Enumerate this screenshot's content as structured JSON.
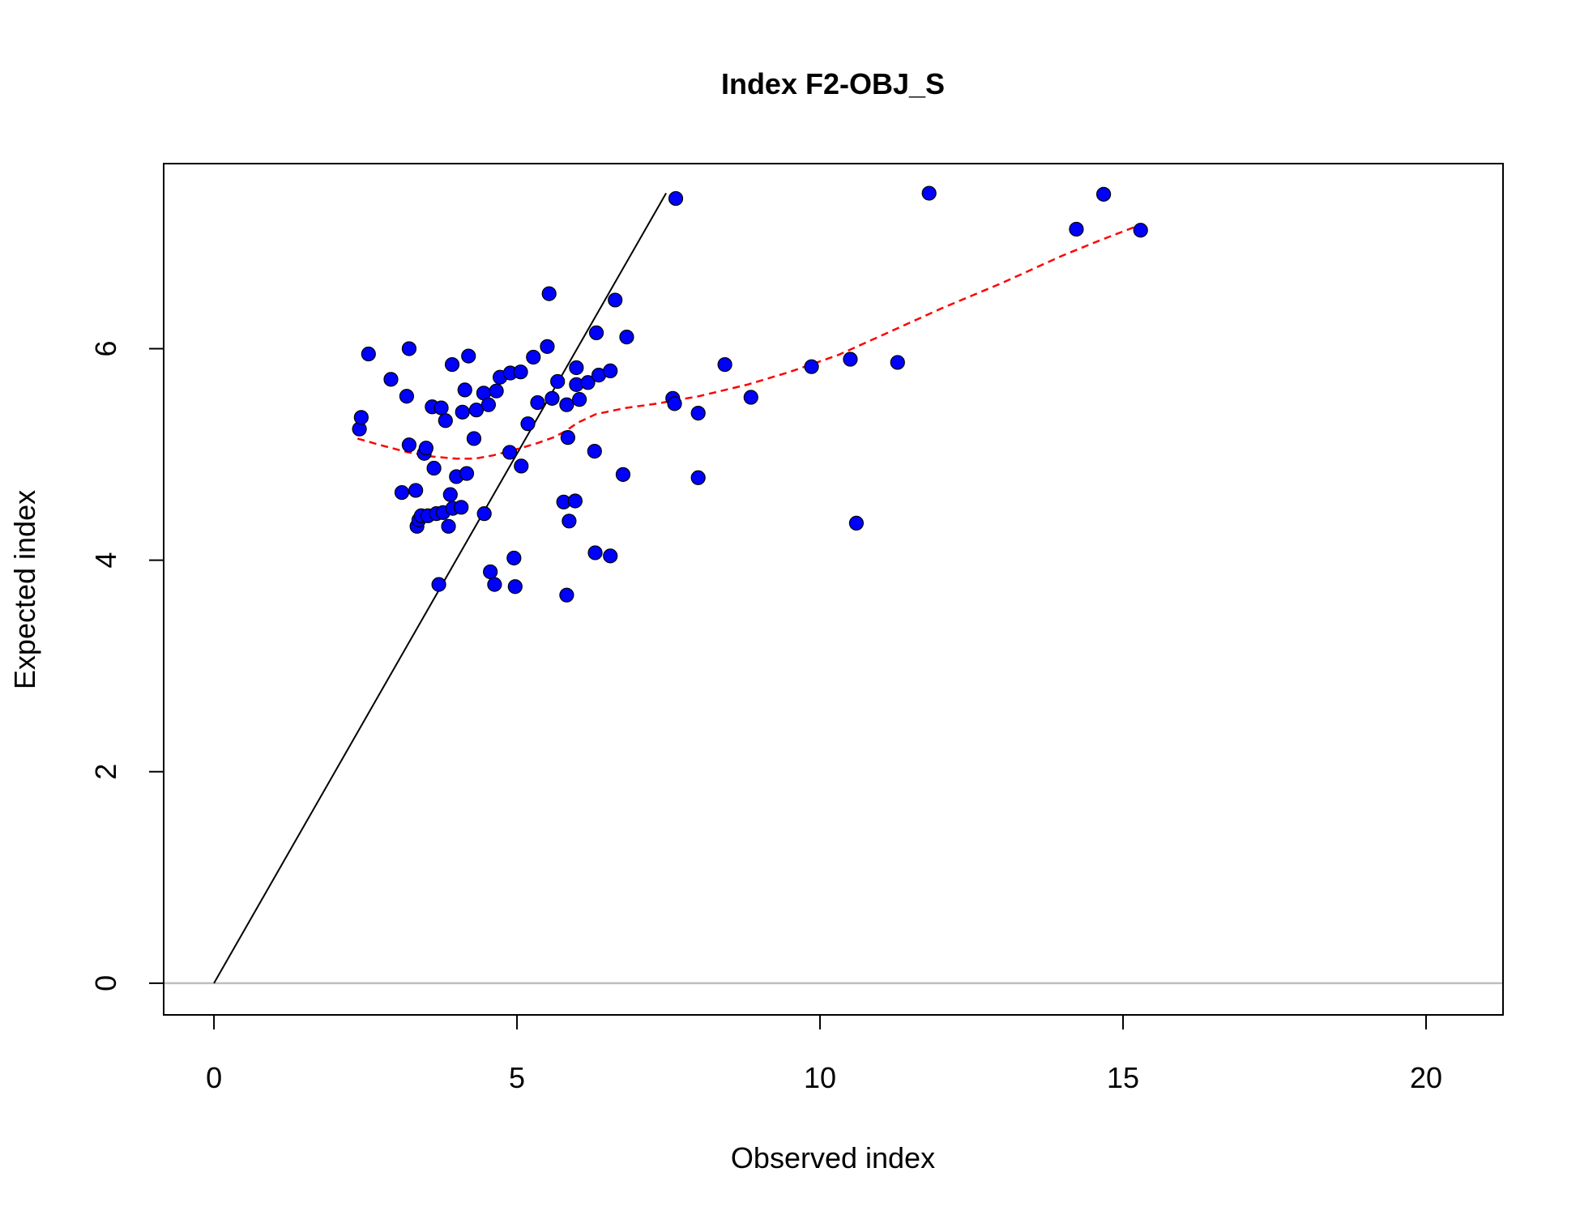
{
  "chart_data": {
    "type": "scatter",
    "title": "Index F2-OBJ_S",
    "xlabel": "Observed index",
    "ylabel": "Expected index",
    "xlim": [
      -0.83,
      21.27
    ],
    "ylim": [
      -0.3,
      7.75
    ],
    "x_ticks": [
      0,
      5,
      10,
      15,
      20
    ],
    "y_ticks": [
      0,
      2,
      4,
      6
    ],
    "x_tick_labels": [
      "0",
      "5",
      "10",
      "15",
      "20"
    ],
    "y_tick_labels": [
      "0",
      "2",
      "4",
      "6"
    ],
    "grid": false,
    "legend": "none",
    "points": {
      "color": "#0000ff",
      "edge_color": "#000000",
      "x": [
        2.4,
        2.43,
        2.55,
        2.92,
        3.1,
        3.18,
        3.22,
        3.22,
        3.33,
        3.35,
        3.38,
        3.42,
        3.47,
        3.5,
        3.53,
        3.6,
        3.63,
        3.67,
        3.71,
        3.75,
        3.78,
        3.82,
        3.87,
        3.9,
        3.93,
        3.94,
        4.0,
        4.08,
        4.1,
        4.14,
        4.17,
        4.2,
        4.29,
        4.33,
        4.45,
        4.46,
        4.53,
        4.56,
        4.63,
        4.66,
        4.72,
        4.88,
        4.89,
        4.95,
        4.97,
        5.06,
        5.07,
        5.18,
        5.27,
        5.34,
        5.5,
        5.53,
        5.58,
        5.67,
        5.77,
        5.82,
        5.82,
        5.84,
        5.86,
        5.96,
        5.98,
        5.98,
        6.03,
        6.17,
        6.28,
        6.29,
        6.31,
        6.35,
        6.54,
        6.54,
        6.62,
        6.75,
        6.81,
        7.57,
        7.6,
        7.62,
        7.99,
        7.99,
        8.43,
        8.86,
        9.86,
        10.5,
        10.6,
        11.28,
        11.8,
        14.23,
        14.68,
        15.29
      ],
      "y": [
        5.24,
        5.35,
        5.95,
        5.71,
        4.64,
        5.55,
        5.09,
        6.0,
        4.66,
        4.32,
        4.38,
        4.42,
        5.01,
        5.06,
        4.42,
        5.45,
        4.87,
        4.44,
        3.77,
        5.44,
        4.45,
        5.32,
        4.32,
        4.62,
        5.85,
        4.49,
        4.79,
        4.5,
        5.4,
        5.61,
        4.82,
        5.93,
        5.15,
        5.42,
        5.58,
        4.44,
        5.47,
        3.89,
        3.77,
        5.6,
        5.73,
        5.02,
        5.77,
        4.02,
        3.75,
        5.78,
        4.89,
        5.29,
        5.92,
        5.49,
        6.02,
        6.52,
        5.53,
        5.69,
        4.55,
        3.67,
        5.47,
        5.16,
        4.37,
        4.56,
        5.66,
        5.82,
        5.52,
        5.68,
        5.03,
        4.07,
        6.15,
        5.75,
        5.79,
        4.04,
        6.46,
        4.81,
        6.11,
        5.53,
        5.48,
        7.42,
        5.39,
        4.78,
        5.85,
        5.54,
        5.83,
        5.9,
        4.35,
        5.87,
        7.47,
        7.13,
        7.46,
        7.12
      ]
    },
    "reference_line": {
      "color": "#000000",
      "x": [
        0,
        7.46
      ],
      "y": [
        0,
        7.47
      ]
    },
    "hline": {
      "y": 0,
      "color": "#bebebe"
    },
    "smooth_line": {
      "color": "#ff0000",
      "style": "dashed",
      "x": [
        2.37,
        2.8,
        3.2,
        3.6,
        4.0,
        4.3,
        4.6,
        5.0,
        5.3,
        5.6,
        5.8,
        6.0,
        6.3,
        6.8,
        7.3,
        8.0,
        8.8,
        9.5,
        10.3,
        11.0,
        12.0,
        13.0,
        14.0,
        14.6,
        15.28
      ],
      "y": [
        5.15,
        5.08,
        5.02,
        4.98,
        4.96,
        4.96,
        4.99,
        5.05,
        5.1,
        5.16,
        5.22,
        5.3,
        5.38,
        5.44,
        5.48,
        5.55,
        5.66,
        5.78,
        5.94,
        6.12,
        6.38,
        6.62,
        6.88,
        7.02,
        7.17
      ]
    }
  }
}
